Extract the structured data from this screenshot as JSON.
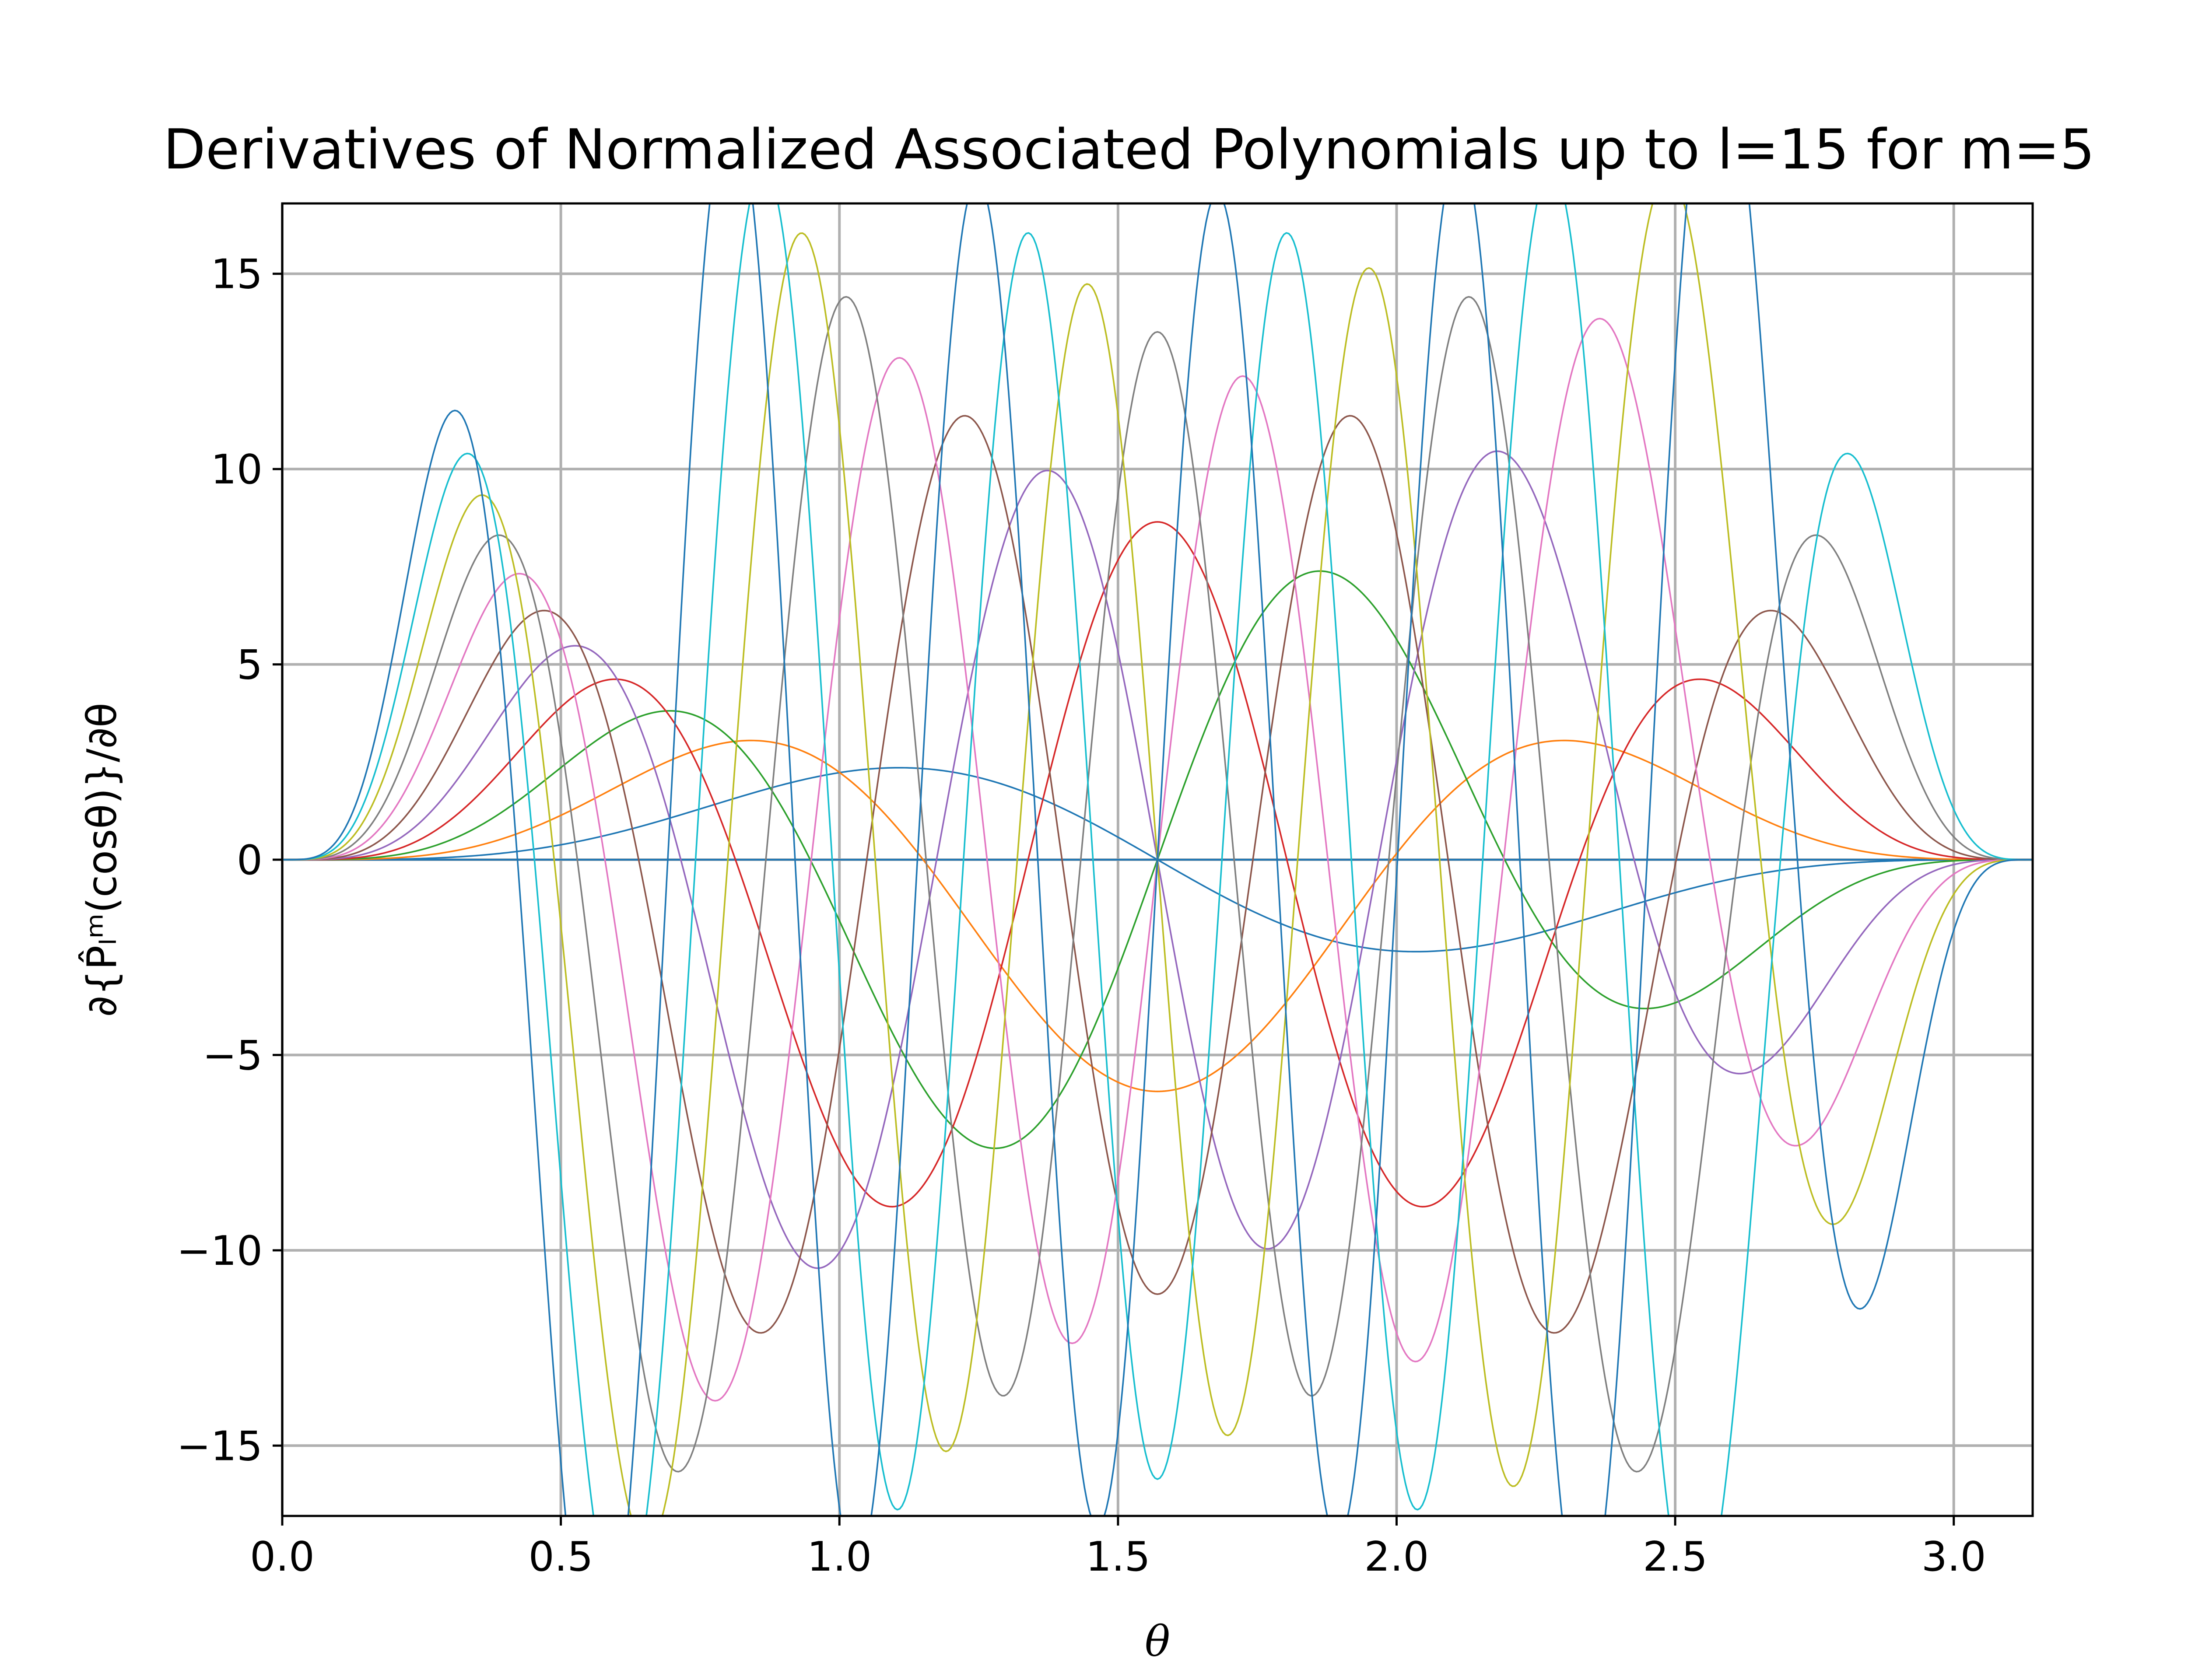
{
  "chart_data": {
    "type": "line",
    "title": "Derivatives of Normalized Associated Polynomials up to l=15 for m=5",
    "xlabel": "θ",
    "ylabel": "∂{P̂ₗᵐ(cosθ)}/∂θ",
    "xlim": [
      0,
      3.14159
    ],
    "ylim": [
      -16.8,
      16.8
    ],
    "xticks": [
      0.0,
      0.5,
      1.0,
      1.5,
      2.0,
      2.5,
      3.0
    ],
    "xtick_labels": [
      "0.0",
      "0.5",
      "1.0",
      "1.5",
      "2.0",
      "2.5",
      "3.0"
    ],
    "yticks": [
      -15,
      -10,
      -5,
      0,
      5,
      10,
      15
    ],
    "ytick_labels": [
      "−15",
      "−10",
      "−5",
      "0",
      "5",
      "10",
      "15"
    ],
    "grid": true,
    "legend": "none",
    "x_range": [
      0,
      3.14159
    ],
    "samples": 720,
    "m": 5,
    "series": [
      {
        "l": 0,
        "color": "#1f77b4"
      },
      {
        "l": 1,
        "color": "#1f77b4"
      },
      {
        "l": 2,
        "color": "#1f77b4"
      },
      {
        "l": 3,
        "color": "#1f77b4"
      },
      {
        "l": 4,
        "color": "#1f77b4"
      },
      {
        "l": 5,
        "color": "#1f77b4"
      },
      {
        "l": 6,
        "color": "#ff7f0e"
      },
      {
        "l": 7,
        "color": "#2ca02c"
      },
      {
        "l": 8,
        "color": "#d62728"
      },
      {
        "l": 9,
        "color": "#9467bd"
      },
      {
        "l": 10,
        "color": "#8c564b"
      },
      {
        "l": 11,
        "color": "#e377c2"
      },
      {
        "l": 12,
        "color": "#7f7f7f"
      },
      {
        "l": 13,
        "color": "#bcbd22"
      },
      {
        "l": 14,
        "color": "#17becf"
      },
      {
        "l": 15,
        "color": "#1f77b4"
      }
    ]
  }
}
